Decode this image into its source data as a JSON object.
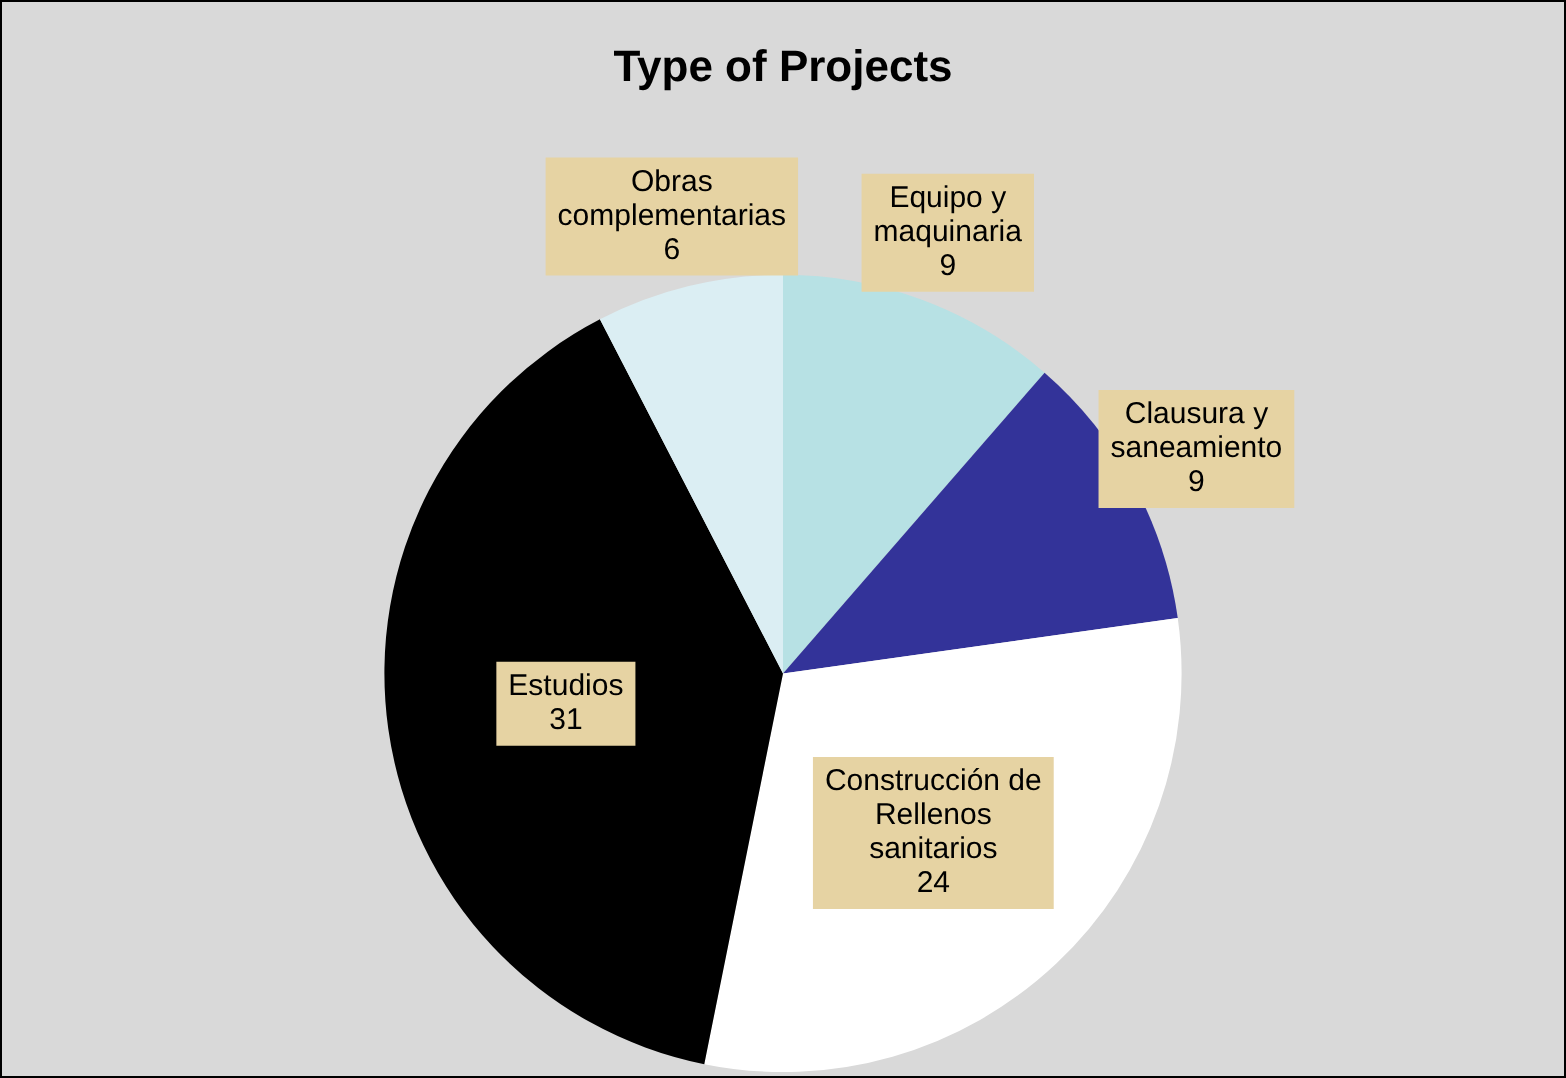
{
  "chart_data": {
    "type": "pie",
    "title": "Type of Projects",
    "categories": [
      "Equipo y maquinaria",
      "Clausura y saneamiento",
      "Construcción de Rellenos sanitarios",
      "Estudios",
      "Obras complementarias"
    ],
    "values": [
      9,
      9,
      24,
      31,
      6
    ],
    "colors": [
      "#b7e1e4",
      "#333399",
      "#ffffff",
      "#000000",
      "#dbeef3"
    ],
    "data_labels": true,
    "legend": false
  }
}
